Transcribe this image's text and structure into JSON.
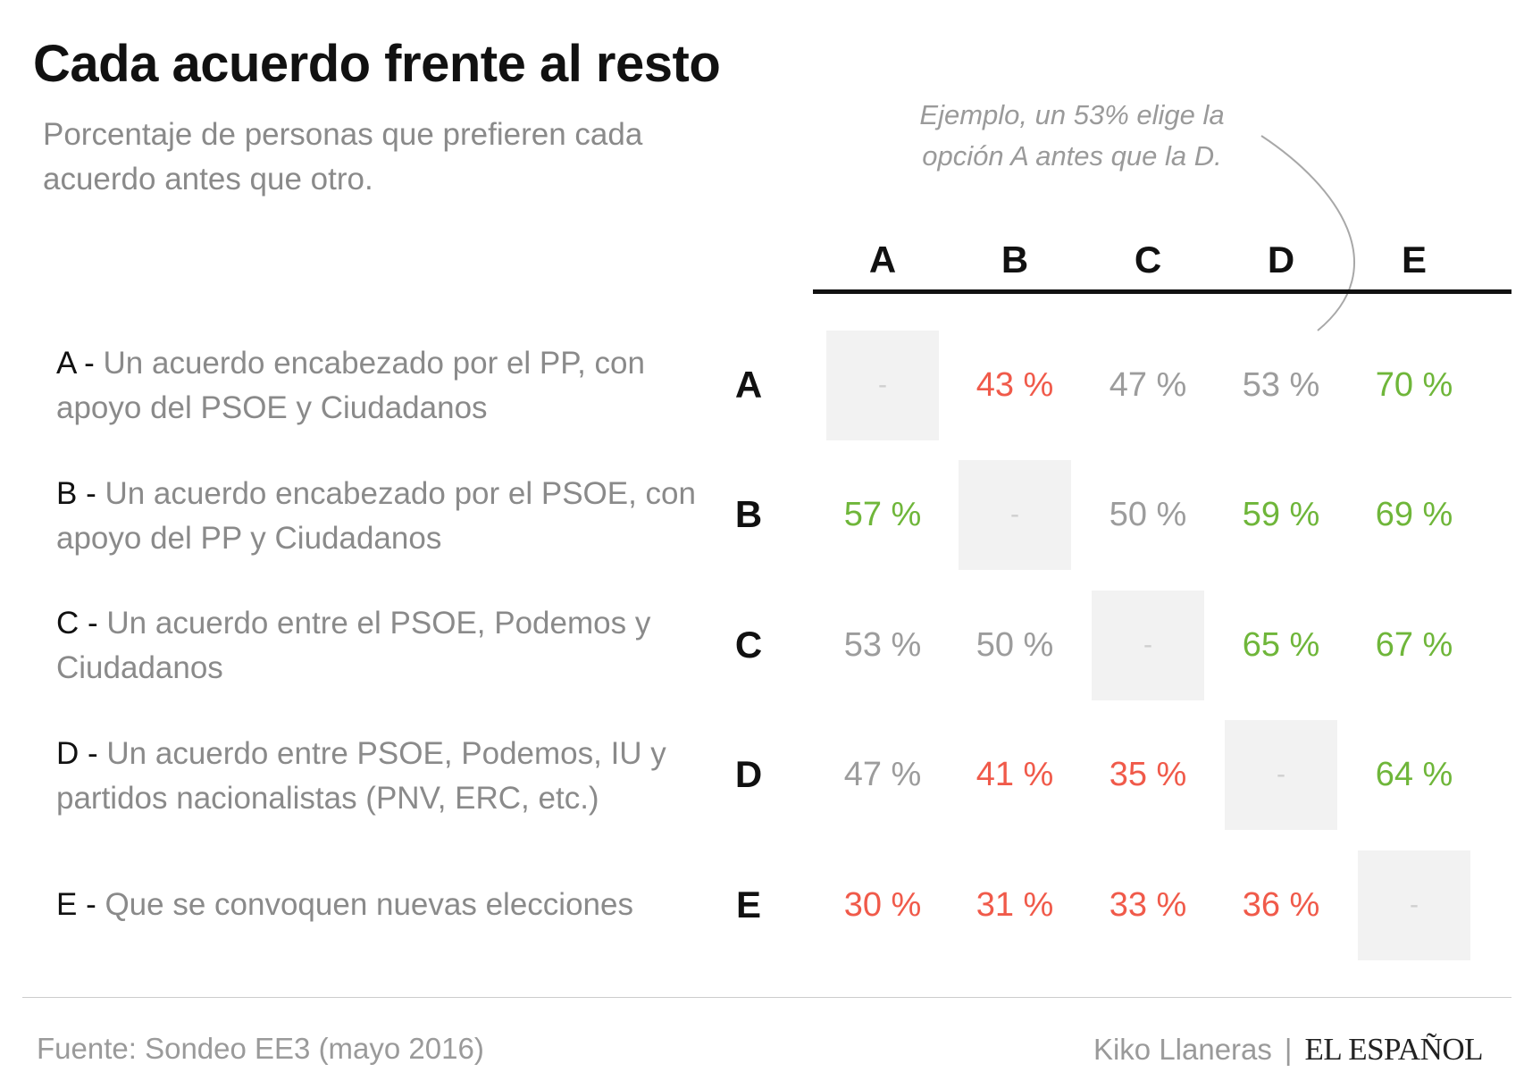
{
  "title": "Cada acuerdo frente al resto",
  "subtitle": "Porcentaje de personas que prefieren cada acuerdo antes que otro.",
  "annotation": "Ejemplo, un 53% elige la opción A antes que la D.",
  "footer": {
    "source": "Fuente: Sondeo EE3 (mayo 2016)",
    "author": "Kiko Llaneras",
    "separator": "|",
    "brand": "EL ESPAÑOL"
  },
  "colors": {
    "negative": "#f05a4a",
    "neutral": "#9c9c9c",
    "positive": "#6fb63a",
    "diagonal_bg": "#f2f2f2"
  },
  "chart_data": {
    "type": "table",
    "columns": [
      "A",
      "B",
      "C",
      "D",
      "E"
    ],
    "rows": [
      {
        "key": "A",
        "label_key": "A - ",
        "label_text": "Un acuerdo encabezado por el PP, con apoyo del PSOE y Ciudadanos"
      },
      {
        "key": "B",
        "label_key": "B - ",
        "label_text": "Un acuerdo encabezado por el PSOE, con apoyo del PP y Ciudadanos"
      },
      {
        "key": "C",
        "label_key": "C - ",
        "label_text": "Un acuerdo entre el PSOE, Podemos y Ciudadanos"
      },
      {
        "key": "D",
        "label_key": "D - ",
        "label_text": "Un acuerdo entre PSOE, Podemos, IU y partidos nacionalistas (PNV, ERC, etc.)"
      },
      {
        "key": "E",
        "label_key": "E - ",
        "label_text": "Que se convoquen nuevas elecciones"
      }
    ],
    "values": [
      [
        null,
        43,
        47,
        53,
        70
      ],
      [
        57,
        null,
        50,
        59,
        69
      ],
      [
        53,
        50,
        null,
        65,
        67
      ],
      [
        47,
        41,
        35,
        null,
        64
      ],
      [
        30,
        31,
        33,
        36,
        null
      ]
    ],
    "unit": " %",
    "diagonal_label": "-"
  }
}
